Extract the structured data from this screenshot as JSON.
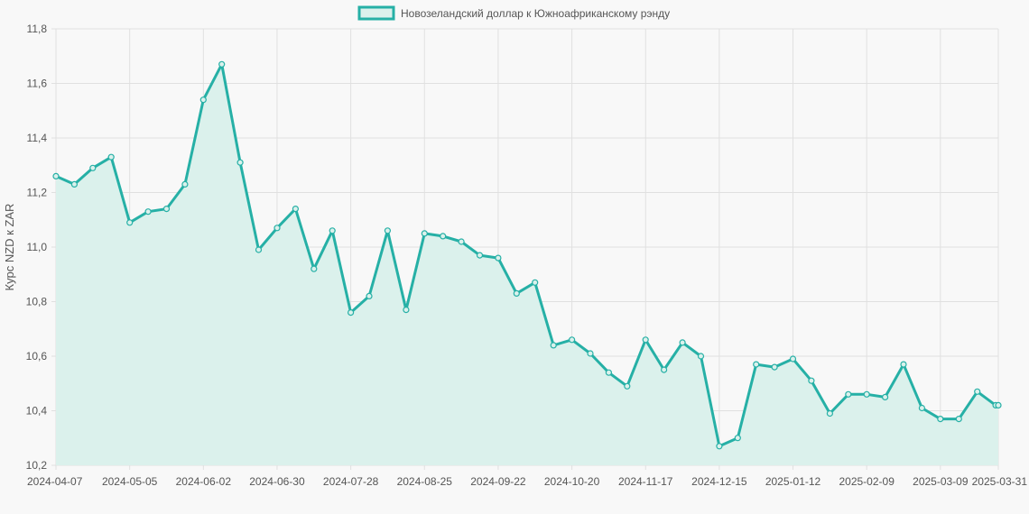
{
  "chart_data": {
    "type": "line",
    "ylabel": "Курс NZD к ZAR",
    "ylim": [
      10.2,
      11.8
    ],
    "y_ticks": [
      "10,2",
      "10,4",
      "10,6",
      "10,8",
      "11,0",
      "11,2",
      "11,4",
      "11,6",
      "11,8"
    ],
    "x_tick_labels": [
      "2024-04-07",
      "2024-05-05",
      "2024-06-02",
      "2024-06-30",
      "2024-07-28",
      "2024-08-25",
      "2024-09-22",
      "2024-10-20",
      "2024-11-17",
      "2024-12-15",
      "2025-01-12",
      "2025-02-09",
      "2025-03-09",
      "2025-03-31"
    ],
    "grid": true,
    "legend_position": "top-center",
    "colors": {
      "line": "#26b0a6",
      "fill": "#dbf1ec",
      "grid": "#e0e0e0",
      "background": "#f8f8f8"
    },
    "series": [
      {
        "name": "Новозеландский доллар к Южноафриканскому рэнду",
        "x": [
          "2024-04-07",
          "2024-04-14",
          "2024-04-21",
          "2024-04-28",
          "2024-05-05",
          "2024-05-12",
          "2024-05-19",
          "2024-05-26",
          "2024-06-02",
          "2024-06-09",
          "2024-06-16",
          "2024-06-23",
          "2024-06-30",
          "2024-07-07",
          "2024-07-14",
          "2024-07-21",
          "2024-07-28",
          "2024-08-04",
          "2024-08-11",
          "2024-08-18",
          "2024-08-25",
          "2024-09-01",
          "2024-09-08",
          "2024-09-15",
          "2024-09-22",
          "2024-09-29",
          "2024-10-06",
          "2024-10-13",
          "2024-10-20",
          "2024-10-27",
          "2024-11-03",
          "2024-11-10",
          "2024-11-17",
          "2024-11-24",
          "2024-12-01",
          "2024-12-08",
          "2024-12-15",
          "2024-12-22",
          "2024-12-29",
          "2025-01-05",
          "2025-01-12",
          "2025-01-19",
          "2025-01-26",
          "2025-02-02",
          "2025-02-09",
          "2025-02-16",
          "2025-02-23",
          "2025-03-02",
          "2025-03-09",
          "2025-03-16",
          "2025-03-23",
          "2025-03-30",
          "2025-03-31"
        ],
        "values": [
          11.26,
          11.23,
          11.29,
          11.33,
          11.09,
          11.13,
          11.14,
          11.23,
          11.54,
          11.67,
          11.31,
          10.99,
          11.07,
          11.14,
          10.92,
          11.06,
          10.76,
          10.82,
          11.06,
          10.77,
          11.05,
          11.04,
          11.02,
          10.97,
          10.96,
          10.83,
          10.87,
          10.64,
          10.66,
          10.61,
          10.54,
          10.49,
          10.66,
          10.55,
          10.65,
          10.6,
          10.27,
          10.3,
          10.57,
          10.56,
          10.59,
          10.51,
          10.39,
          10.46,
          10.46,
          10.45,
          10.57,
          10.41,
          10.37,
          10.37,
          10.47,
          10.42,
          10.42
        ]
      }
    ]
  }
}
